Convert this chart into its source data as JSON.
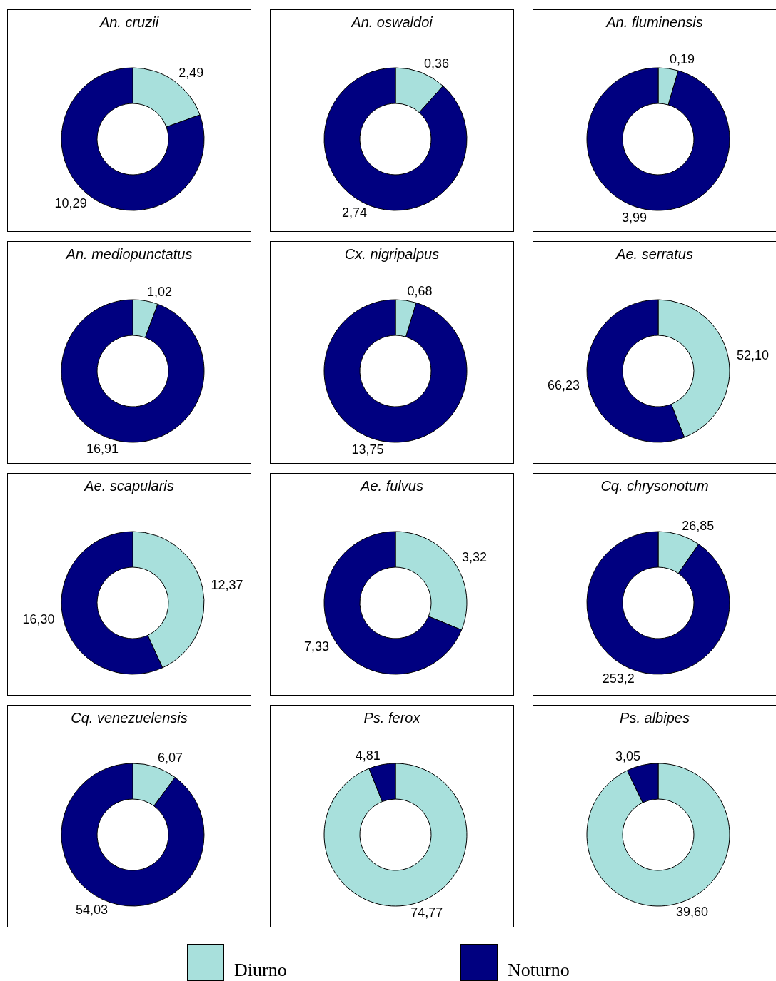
{
  "chart_data": [
    {
      "type": "donut",
      "title": "An. cruzii",
      "categories": [
        "Diurno",
        "Noturno"
      ],
      "values": [
        2.49,
        10.29
      ],
      "value_labels": [
        "2,49",
        "10,29"
      ],
      "colors": [
        "#a8e0dc",
        "#000080"
      ],
      "legend": "bottom"
    },
    {
      "type": "donut",
      "title": "An. oswaldoi",
      "categories": [
        null,
        null
      ],
      "values": [
        0.36,
        2.74
      ],
      "value_labels": [
        "0,36",
        "2,74"
      ],
      "colors": [
        "#a8e0dc",
        "#000080"
      ]
    },
    {
      "type": "donut",
      "title": "An. fluminensis",
      "categories": [
        null,
        null
      ],
      "values": [
        0.19,
        3.99
      ],
      "value_labels": [
        "0,19",
        "3,99"
      ],
      "colors": [
        "#a8e0dc",
        "#000080"
      ]
    },
    {
      "type": "donut",
      "title": "An. mediopunctatus",
      "categories": [
        null,
        null
      ],
      "values": [
        1.02,
        16.91
      ],
      "value_labels": [
        "1,02",
        "16,91"
      ],
      "colors": [
        "#a8e0dc",
        "#000080"
      ]
    },
    {
      "type": "donut",
      "title": "Cx. nigripalpus",
      "categories": [
        null,
        null
      ],
      "values": [
        0.68,
        13.75
      ],
      "value_labels": [
        "0,68",
        "13,75"
      ],
      "colors": [
        "#a8e0dc",
        "#000080"
      ]
    },
    {
      "type": "donut",
      "title": "Ae. serratus",
      "categories": [
        null,
        null
      ],
      "values": [
        52.1,
        66.23
      ],
      "value_labels": [
        "52,10",
        "66,23"
      ],
      "colors": [
        "#a8e0dc",
        "#000080"
      ]
    },
    {
      "type": "donut",
      "title": "Ae. scapularis",
      "categories": [
        null,
        null
      ],
      "values": [
        12.37,
        16.3
      ],
      "value_labels": [
        "12,37",
        "16,30"
      ],
      "colors": [
        "#a8e0dc",
        "#000080"
      ]
    },
    {
      "type": "donut",
      "title": "Ae. fulvus",
      "categories": [
        null,
        null
      ],
      "values": [
        3.32,
        7.33
      ],
      "value_labels": [
        "3,32",
        "7,33"
      ],
      "colors": [
        "#a8e0dc",
        "#000080"
      ]
    },
    {
      "type": "donut",
      "title": "Cq. chrysonotum",
      "categories": [
        null,
        null
      ],
      "values": [
        26.85,
        253.2
      ],
      "value_labels": [
        "26,85",
        "253,2"
      ],
      "colors": [
        "#a8e0dc",
        "#000080"
      ]
    },
    {
      "type": "donut",
      "title": "Cq. venezuelensis",
      "categories": [
        null,
        null
      ],
      "values": [
        6.07,
        54.03
      ],
      "value_labels": [
        "6,07",
        "54,03"
      ],
      "colors": [
        "#a8e0dc",
        "#000080"
      ]
    },
    {
      "type": "donut",
      "title": "Ps. ferox",
      "categories": [
        null,
        null
      ],
      "values": [
        74.77,
        4.81
      ],
      "value_labels": [
        "74,77",
        "4,81"
      ],
      "colors": [
        "#a8e0dc",
        "#000080"
      ]
    },
    {
      "type": "donut",
      "title": "Ps. albipes",
      "categories": [
        null,
        null
      ],
      "values": [
        39.6,
        3.05
      ],
      "value_labels": [
        "39,60",
        "3,05"
      ],
      "colors": [
        "#a8e0dc",
        "#000080"
      ]
    }
  ]
}
